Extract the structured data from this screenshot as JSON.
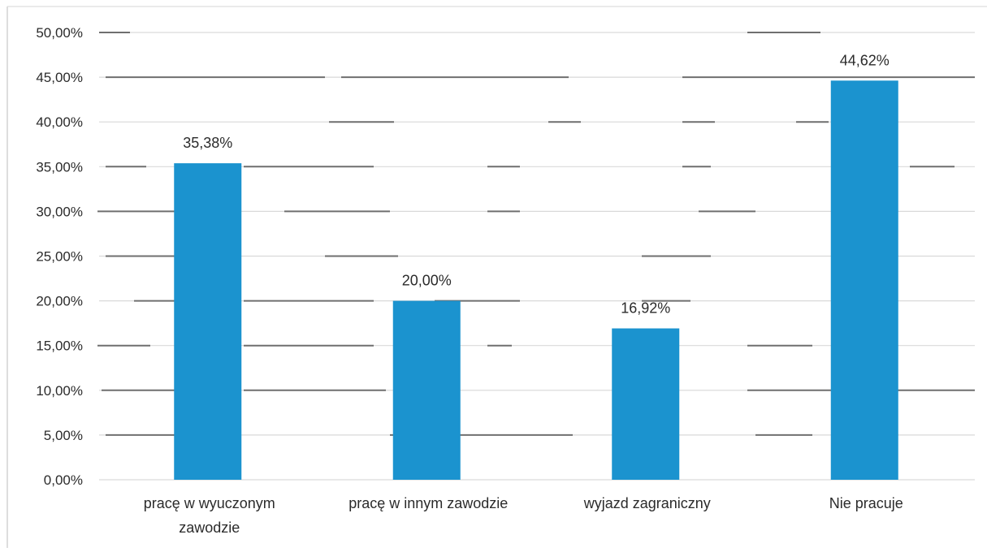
{
  "chart_data": {
    "type": "bar",
    "categories": [
      [
        "pracę w wyuczonym",
        "zawodzie"
      ],
      [
        "pracę w innym zawodzie"
      ],
      [
        "wyjazd zagraniczny"
      ],
      [
        "Nie pracuje"
      ]
    ],
    "values": [
      35.38,
      20.0,
      16.92,
      44.62
    ],
    "data_labels": [
      "35,38%",
      "20,00%",
      "16,92%",
      "44,62%"
    ],
    "y_ticks": [
      "0,00%",
      "5,00%",
      "10,00%",
      "15,00%",
      "20,00%",
      "25,00%",
      "30,00%",
      "35,00%",
      "40,00%",
      "45,00%",
      "50,00%"
    ],
    "ylim": [
      0,
      50
    ],
    "title": "",
    "xlabel": "",
    "ylabel": "",
    "grid": true,
    "legend": "none",
    "colors": {
      "bar": "#1b93cf",
      "grid": "#d9d9d9",
      "text": "#2b2b2b",
      "border": "#bdbdbd"
    }
  }
}
